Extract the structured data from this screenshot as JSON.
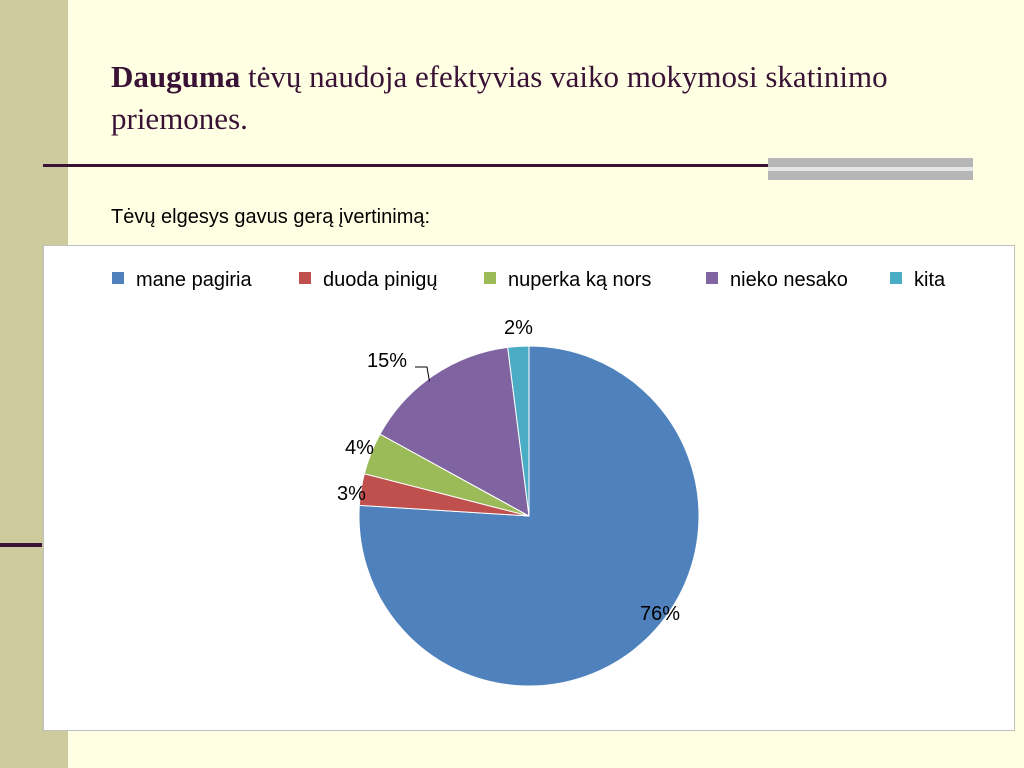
{
  "slide": {
    "title_bold": "Dauguma",
    "title_rest": " tėvų naudoja efektyvias vaiko mokymosi skatinimo priemones.",
    "subtitle": "Tėvų elgesys gavus gerą įvertinimą:"
  },
  "chart_data": {
    "type": "pie",
    "title": "",
    "categories": [
      "mane pagiria",
      "duoda pinigų",
      "nuperka ką nors",
      "nieko nesako",
      "kita"
    ],
    "values": [
      76,
      3,
      4,
      15,
      2
    ],
    "labels": [
      "76%",
      "3%",
      "4%",
      "15%",
      "2%"
    ],
    "colors": [
      "#4F81BD",
      "#C0504D",
      "#9BBB59",
      "#8064A2",
      "#4BACC6"
    ],
    "legend": "top",
    "start": "top, clockwise"
  }
}
